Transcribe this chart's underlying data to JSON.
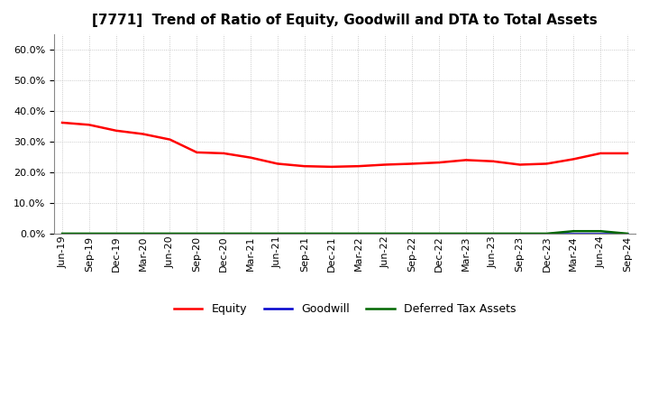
{
  "title": "[7771]  Trend of Ratio of Equity, Goodwill and DTA to Total Assets",
  "x_labels": [
    "Jun-19",
    "Sep-19",
    "Dec-19",
    "Mar-20",
    "Jun-20",
    "Sep-20",
    "Dec-20",
    "Mar-21",
    "Jun-21",
    "Sep-21",
    "Dec-21",
    "Mar-22",
    "Jun-22",
    "Sep-22",
    "Dec-22",
    "Mar-23",
    "Jun-23",
    "Sep-23",
    "Dec-23",
    "Mar-24",
    "Jun-24",
    "Sep-24"
  ],
  "equity": [
    0.362,
    0.355,
    0.336,
    0.325,
    0.307,
    0.265,
    0.262,
    0.248,
    0.228,
    0.22,
    0.218,
    0.22,
    0.225,
    0.228,
    0.232,
    0.24,
    0.236,
    0.225,
    0.228,
    0.243,
    0.262,
    0.262
  ],
  "goodwill": [
    0.0,
    0.0,
    0.0,
    0.0,
    0.0,
    0.0,
    0.0,
    0.0,
    0.0,
    0.0,
    0.0,
    0.0,
    0.0,
    0.0,
    0.0,
    0.0,
    0.0,
    0.0,
    0.0,
    0.0,
    0.0,
    0.0
  ],
  "dta": [
    0.0,
    0.0,
    0.0,
    0.0,
    0.0,
    0.0,
    0.0,
    0.0,
    0.0,
    0.0,
    0.0,
    0.0,
    0.0,
    0.0,
    0.0,
    0.0,
    0.0,
    0.0,
    0.0,
    0.008,
    0.008,
    0.0
  ],
  "equity_color": "#FF0000",
  "goodwill_color": "#0000CC",
  "dta_color": "#006600",
  "ylim_min": 0.0,
  "ylim_max": 0.65,
  "yticks": [
    0.0,
    0.1,
    0.2,
    0.3,
    0.4,
    0.5,
    0.6
  ],
  "bg_color": "#FFFFFF",
  "plot_bg_color": "#FFFFFF",
  "grid_color": "#AAAAAA",
  "title_fontsize": 11,
  "axis_fontsize": 8,
  "legend_labels": [
    "Equity",
    "Goodwill",
    "Deferred Tax Assets"
  ],
  "line_width": 1.8
}
